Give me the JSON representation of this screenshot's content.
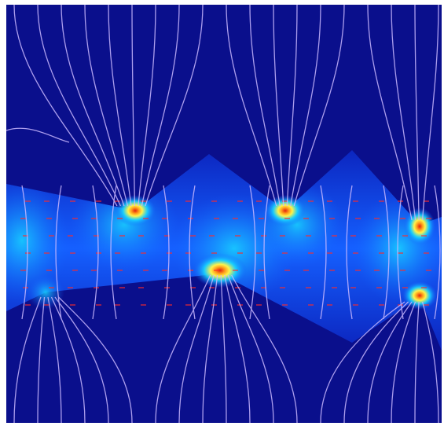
{
  "figure": {
    "subject": "field-plot",
    "colors": {
      "background": "#0a0f8c",
      "gap_field_deep": "#0b1fb8",
      "gap_field_mid": "#1565ff",
      "gap_field_bright": "#18d4ff",
      "hotspot_yellow": "#fff34a",
      "hotspot_orange": "#ff9a1a",
      "hotspot_red": "#e02010",
      "contour_line": "#c9b8ff",
      "arrow_marks": "#ff2a2a"
    },
    "features": {
      "upper_electrode": "sawtooth-down",
      "lower_electrode": "sawtooth-up",
      "upper_tip_count": 3,
      "lower_tip_count": 2,
      "field_lines": "curved-equipotential",
      "vector_arrows": "red"
    }
  }
}
